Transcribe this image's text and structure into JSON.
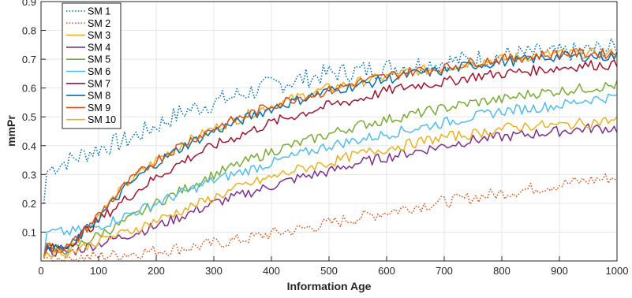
{
  "chart_data": {
    "type": "line",
    "title": "",
    "xlabel": "Information Age",
    "ylabel": "mmPr",
    "xlim": [
      0,
      1000
    ],
    "ylim": [
      0,
      0.9
    ],
    "xticks": [
      0,
      100,
      200,
      300,
      400,
      500,
      600,
      700,
      800,
      900,
      1000
    ],
    "yticks": [
      0.1,
      0.2,
      0.3,
      0.4,
      0.5,
      0.6,
      0.7,
      0.8,
      0.9
    ],
    "grid": true,
    "legend_position": "top-left",
    "series": [
      {
        "name": "SM 1",
        "color": "#0072BD",
        "dash": "dotted",
        "x": [
          5,
          10,
          25,
          50,
          75,
          100,
          150,
          200,
          250,
          300,
          350,
          400,
          450,
          500,
          550,
          600,
          650,
          700,
          750,
          800,
          850,
          900,
          950,
          1000
        ],
        "y": [
          0.2,
          0.31,
          0.33,
          0.35,
          0.37,
          0.39,
          0.42,
          0.47,
          0.52,
          0.55,
          0.58,
          0.61,
          0.63,
          0.65,
          0.66,
          0.67,
          0.68,
          0.69,
          0.7,
          0.71,
          0.72,
          0.72,
          0.73,
          0.74
        ]
      },
      {
        "name": "SM 2",
        "color": "#D95319",
        "dash": "dotted",
        "x": [
          5,
          50,
          100,
          150,
          200,
          250,
          300,
          350,
          400,
          450,
          500,
          550,
          600,
          650,
          700,
          750,
          800,
          850,
          900,
          950,
          1000
        ],
        "y": [
          0.01,
          0.01,
          0.015,
          0.025,
          0.035,
          0.045,
          0.06,
          0.075,
          0.095,
          0.11,
          0.13,
          0.15,
          0.17,
          0.19,
          0.205,
          0.22,
          0.235,
          0.25,
          0.265,
          0.28,
          0.29
        ]
      },
      {
        "name": "SM 3",
        "color": "#EDB120",
        "dash": "solid",
        "x": [
          5,
          10,
          25,
          50,
          100,
          150,
          200,
          250,
          300,
          350,
          400,
          450,
          500,
          550,
          600,
          650,
          700,
          750,
          800,
          850,
          900,
          950,
          1000
        ],
        "y": [
          0.01,
          0.06,
          0.04,
          0.05,
          0.16,
          0.27,
          0.35,
          0.41,
          0.46,
          0.5,
          0.54,
          0.57,
          0.6,
          0.62,
          0.64,
          0.66,
          0.67,
          0.69,
          0.7,
          0.71,
          0.72,
          0.72,
          0.72
        ]
      },
      {
        "name": "SM 4",
        "color": "#7E2F8E",
        "dash": "solid",
        "x": [
          5,
          10,
          25,
          50,
          100,
          150,
          200,
          250,
          300,
          350,
          400,
          450,
          500,
          550,
          600,
          650,
          700,
          750,
          800,
          850,
          900,
          950,
          1000
        ],
        "y": [
          0.01,
          0.04,
          0.03,
          0.03,
          0.06,
          0.09,
          0.12,
          0.16,
          0.2,
          0.23,
          0.26,
          0.29,
          0.31,
          0.34,
          0.36,
          0.38,
          0.4,
          0.42,
          0.43,
          0.44,
          0.45,
          0.46,
          0.46
        ]
      },
      {
        "name": "SM 5",
        "color": "#77AC30",
        "dash": "solid",
        "x": [
          5,
          10,
          25,
          50,
          100,
          150,
          200,
          250,
          300,
          350,
          400,
          450,
          500,
          550,
          600,
          650,
          700,
          750,
          800,
          850,
          900,
          950,
          1000
        ],
        "y": [
          0.01,
          0.05,
          0.04,
          0.04,
          0.09,
          0.14,
          0.2,
          0.25,
          0.3,
          0.34,
          0.38,
          0.41,
          0.44,
          0.47,
          0.49,
          0.51,
          0.53,
          0.55,
          0.56,
          0.58,
          0.59,
          0.6,
          0.61
        ]
      },
      {
        "name": "SM 6",
        "color": "#4DBEEE",
        "dash": "solid",
        "x": [
          5,
          10,
          25,
          50,
          100,
          150,
          200,
          250,
          300,
          350,
          400,
          450,
          500,
          550,
          600,
          650,
          700,
          750,
          800,
          850,
          900,
          950,
          1000
        ],
        "y": [
          0.01,
          0.1,
          0.1,
          0.1,
          0.12,
          0.16,
          0.2,
          0.24,
          0.28,
          0.31,
          0.34,
          0.37,
          0.4,
          0.42,
          0.44,
          0.46,
          0.48,
          0.5,
          0.52,
          0.53,
          0.54,
          0.56,
          0.57
        ]
      },
      {
        "name": "SM 7",
        "color": "#A2142F",
        "dash": "solid",
        "x": [
          5,
          10,
          25,
          50,
          100,
          150,
          200,
          250,
          300,
          350,
          400,
          450,
          500,
          550,
          600,
          650,
          700,
          750,
          800,
          850,
          900,
          950,
          1000
        ],
        "y": [
          0.01,
          0.05,
          0.04,
          0.06,
          0.14,
          0.22,
          0.29,
          0.35,
          0.4,
          0.44,
          0.48,
          0.51,
          0.54,
          0.56,
          0.59,
          0.61,
          0.62,
          0.64,
          0.65,
          0.66,
          0.67,
          0.68,
          0.68
        ]
      },
      {
        "name": "SM 8",
        "color": "#0072BD",
        "dash": "solid",
        "x": [
          5,
          10,
          25,
          50,
          100,
          150,
          200,
          250,
          300,
          350,
          400,
          450,
          500,
          550,
          600,
          650,
          700,
          750,
          800,
          850,
          900,
          950,
          1000
        ],
        "y": [
          0.01,
          0.06,
          0.04,
          0.05,
          0.15,
          0.26,
          0.34,
          0.4,
          0.45,
          0.49,
          0.53,
          0.56,
          0.59,
          0.61,
          0.63,
          0.65,
          0.66,
          0.68,
          0.69,
          0.7,
          0.71,
          0.71,
          0.71
        ]
      },
      {
        "name": "SM 9",
        "color": "#D95319",
        "dash": "solid",
        "x": [
          5,
          10,
          25,
          50,
          100,
          150,
          200,
          250,
          300,
          350,
          400,
          450,
          500,
          550,
          600,
          650,
          700,
          750,
          800,
          850,
          900,
          950,
          1000
        ],
        "y": [
          0.01,
          0.06,
          0.04,
          0.05,
          0.16,
          0.27,
          0.35,
          0.41,
          0.46,
          0.5,
          0.54,
          0.57,
          0.59,
          0.62,
          0.64,
          0.66,
          0.67,
          0.69,
          0.7,
          0.71,
          0.72,
          0.72,
          0.72
        ]
      },
      {
        "name": "SM 10",
        "color": "#EDB120",
        "dash": "solid",
        "x": [
          5,
          10,
          25,
          50,
          100,
          150,
          200,
          250,
          300,
          350,
          400,
          450,
          500,
          550,
          600,
          650,
          700,
          750,
          800,
          850,
          900,
          950,
          1000
        ],
        "y": [
          0.01,
          0.03,
          0.03,
          0.03,
          0.07,
          0.1,
          0.14,
          0.18,
          0.22,
          0.26,
          0.29,
          0.32,
          0.34,
          0.37,
          0.39,
          0.41,
          0.43,
          0.44,
          0.46,
          0.47,
          0.47,
          0.48,
          0.49
        ]
      }
    ]
  }
}
